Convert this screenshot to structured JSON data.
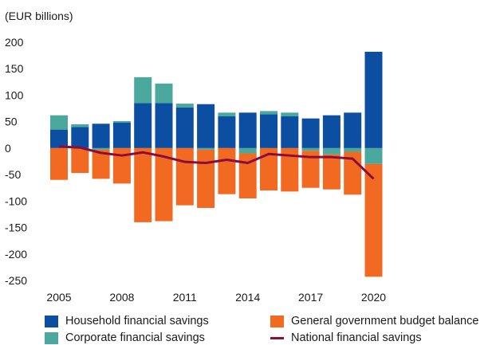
{
  "chart_data": {
    "type": "bar",
    "stacked": true,
    "unit_label": "(EUR billions)",
    "categories": [
      "2005",
      "2006",
      "2007",
      "2008",
      "2009",
      "2010",
      "2011",
      "2012",
      "2013",
      "2014",
      "2015",
      "2016",
      "2017",
      "2018",
      "2019",
      "2020"
    ],
    "x_tick_labels": [
      "2005",
      "2008",
      "2011",
      "2014",
      "2017",
      "2020"
    ],
    "y_ticks": [
      200,
      150,
      100,
      50,
      0,
      -50,
      -100,
      -150,
      -200,
      -250
    ],
    "ylim": [
      -250,
      200
    ],
    "grid": false,
    "legend_position": "bottom",
    "series": [
      {
        "name": "Household financial savings",
        "kind": "bar",
        "color": "#0b4ea2",
        "values": [
          35,
          40,
          46,
          48,
          85,
          85,
          77,
          83,
          60,
          67,
          64,
          60,
          56,
          62,
          67,
          182
        ]
      },
      {
        "name": "Corporate financial savings",
        "kind": "bar",
        "color": "#4aa89c",
        "values": [
          27,
          5,
          -3,
          3,
          49,
          37,
          7,
          -3,
          7,
          -10,
          6,
          7,
          -5,
          -12,
          -7,
          -30
        ]
      },
      {
        "name": "General government budget balance",
        "kind": "bar",
        "color": "#f26a22",
        "values": [
          -60,
          -47,
          -55,
          -67,
          -140,
          -138,
          -108,
          -110,
          -87,
          -85,
          -80,
          -82,
          -70,
          -66,
          -81,
          -213
        ]
      },
      {
        "name": "National financial savings",
        "kind": "line",
        "color": "#8b0e3a",
        "values": [
          3,
          1,
          -9,
          -14,
          -8,
          -16,
          -26,
          -28,
          -22,
          -28,
          -11,
          -14,
          -17,
          -17,
          -20,
          -58
        ]
      }
    ]
  }
}
